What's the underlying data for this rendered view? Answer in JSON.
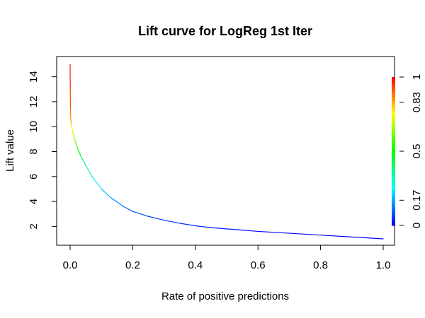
{
  "chart_data": {
    "type": "line",
    "title": "Lift curve for LogReg 1st Iter",
    "xlabel": "Rate of positive predictions",
    "ylabel": "Lift value",
    "xlim": [
      0.0,
      1.0
    ],
    "ylim": [
      1.0,
      15.0
    ],
    "x_ticks": [
      0.0,
      0.2,
      0.4,
      0.6,
      0.8,
      1.0
    ],
    "x_tick_labels": [
      "0.0",
      "0.2",
      "0.4",
      "0.6",
      "0.8",
      "1.0"
    ],
    "y_ticks": [
      2,
      4,
      6,
      8,
      10,
      12,
      14
    ],
    "y_tick_labels": [
      "2",
      "4",
      "6",
      "8",
      "10",
      "12",
      "14"
    ],
    "colorbar": {
      "range": [
        0,
        1
      ],
      "ticks": [
        0,
        0.17,
        0.5,
        0.83,
        1
      ],
      "tick_labels": [
        "0",
        "0.17",
        "0.5",
        "0.83",
        "1"
      ],
      "colormap": "rainbow",
      "placement": "right"
    },
    "grid": false,
    "series": [
      {
        "x": [
          0.0,
          0.0005,
          0.001,
          0.0015,
          0.002,
          0.003,
          0.005,
          0.008,
          0.012,
          0.018,
          0.025,
          0.035,
          0.05,
          0.07,
          0.1,
          0.13,
          0.17,
          0.2,
          0.25,
          0.3,
          0.35,
          0.4,
          0.45,
          0.5,
          0.55,
          0.6,
          0.7,
          0.8,
          0.9,
          1.0
        ],
        "y": [
          15.0,
          13.0,
          11.5,
          11.0,
          10.6,
          10.3,
          10.0,
          9.6,
          9.2,
          8.7,
          8.2,
          7.6,
          6.9,
          6.0,
          5.0,
          4.3,
          3.6,
          3.2,
          2.8,
          2.5,
          2.25,
          2.05,
          1.9,
          1.8,
          1.7,
          1.6,
          1.45,
          1.3,
          1.15,
          1.0
        ],
        "cutoff": [
          1.0,
          0.95,
          0.9,
          0.87,
          0.85,
          0.82,
          0.78,
          0.72,
          0.66,
          0.6,
          0.53,
          0.45,
          0.35,
          0.27,
          0.2,
          0.15,
          0.11,
          0.09,
          0.07,
          0.055,
          0.045,
          0.035,
          0.028,
          0.022,
          0.017,
          0.013,
          0.008,
          0.005,
          0.002,
          0.0
        ]
      }
    ]
  }
}
